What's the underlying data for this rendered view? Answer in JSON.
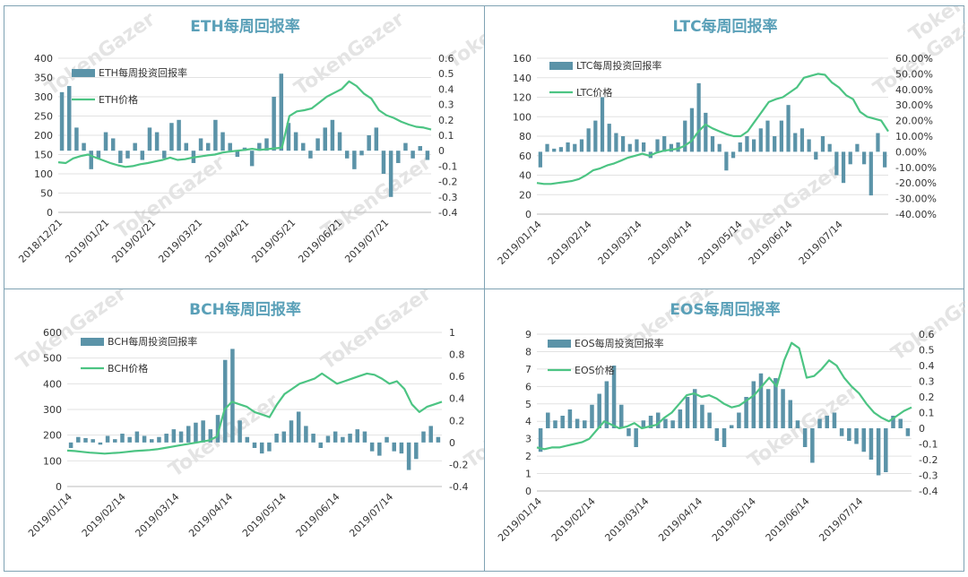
{
  "watermark": "TokenGazer",
  "colors": {
    "bar": "#5b93a8",
    "line": "#4cc483",
    "title": "#5aa0b8"
  },
  "chart_data": [
    {
      "type": "bar+line",
      "title": "ETH每周回报率",
      "bar_series": "ETH每周投资回报率",
      "line_series": "ETH价格",
      "y_left": {
        "min": 0,
        "max": 400,
        "ticks": [
          "0",
          "50",
          "100",
          "150",
          "200",
          "250",
          "300",
          "350",
          "400"
        ]
      },
      "y_right": {
        "min": -0.4,
        "max": 0.6,
        "ticks": [
          "0.6",
          "0.5",
          "0.4",
          "0.3",
          "0.2",
          "0.1",
          "0",
          "-0.1",
          "-0.2",
          "-0.3",
          "-0.4"
        ]
      },
      "x_ticks": [
        "2018/12/21",
        "2019/01/21",
        "2019/02/21",
        "2019/03/21",
        "2019/04/21",
        "2019/05/21",
        "2019/06/21",
        "2019/07/21"
      ],
      "line_values": [
        130,
        128,
        140,
        146,
        150,
        142,
        135,
        128,
        122,
        118,
        120,
        125,
        128,
        132,
        136,
        142,
        136,
        138,
        142,
        145,
        148,
        150,
        155,
        158,
        160,
        162,
        165,
        162,
        164,
        166,
        168,
        250,
        262,
        265,
        270,
        285,
        300,
        310,
        320,
        340,
        328,
        308,
        295,
        265,
        252,
        245,
        235,
        228,
        222,
        220,
        215
      ],
      "bar_values": [
        0.38,
        0.42,
        0.15,
        0.05,
        -0.12,
        -0.05,
        0.12,
        0.08,
        -0.08,
        -0.05,
        0.05,
        -0.06,
        0.15,
        0.12,
        -0.05,
        0.18,
        0.2,
        0.05,
        -0.08,
        0.08,
        0.05,
        0.2,
        0.12,
        0.05,
        -0.04,
        0.02,
        -0.1,
        0.05,
        0.08,
        0.35,
        0.5,
        0.18,
        0.12,
        0.05,
        -0.05,
        0.08,
        0.15,
        0.2,
        0.12,
        -0.05,
        -0.12,
        -0.03,
        0.1,
        0.15,
        -0.15,
        -0.3,
        -0.08,
        0.05,
        -0.05,
        0.03,
        -0.06
      ]
    },
    {
      "type": "bar+line",
      "title": "LTC每周回报率",
      "bar_series": "LTC每周投资回报率",
      "line_series": "LTC价格",
      "y_left": {
        "min": 0,
        "max": 160,
        "ticks": [
          "0",
          "20",
          "40",
          "60",
          "80",
          "100",
          "120",
          "140",
          "160"
        ]
      },
      "y_right": {
        "min": -0.4,
        "max": 0.6,
        "ticks": [
          "60.00%",
          "50.00%",
          "40.00%",
          "30.00%",
          "20.00%",
          "10.00%",
          "0.00%",
          "-10.00%",
          "-20.00%",
          "-30.00%",
          "-40.00%"
        ]
      },
      "x_ticks": [
        "2019/01/14",
        "2019/02/14",
        "2019/03/14",
        "2019/04/14",
        "2019/05/14",
        "2019/06/14",
        "2019/07/14"
      ],
      "line_values": [
        32,
        31,
        31,
        32,
        33,
        34,
        36,
        40,
        45,
        47,
        50,
        52,
        55,
        58,
        60,
        62,
        60,
        63,
        65,
        66,
        67,
        70,
        75,
        85,
        92,
        88,
        85,
        82,
        80,
        80,
        85,
        95,
        105,
        115,
        118,
        120,
        125,
        130,
        140,
        142,
        144,
        143,
        135,
        130,
        122,
        118,
        105,
        100,
        98,
        96,
        85
      ],
      "bar_values": [
        -0.1,
        0.05,
        0.02,
        0.03,
        0.06,
        0.05,
        0.08,
        0.15,
        0.2,
        0.35,
        0.18,
        0.12,
        0.1,
        0.05,
        0.08,
        0.06,
        -0.04,
        0.08,
        0.1,
        0.05,
        0.06,
        0.2,
        0.28,
        0.44,
        0.25,
        0.1,
        0.05,
        -0.12,
        -0.04,
        0.06,
        0.1,
        0.08,
        0.15,
        0.2,
        0.1,
        0.2,
        0.3,
        0.12,
        0.15,
        0.08,
        -0.05,
        0.1,
        0.05,
        -0.15,
        -0.2,
        -0.08,
        0.05,
        -0.08,
        -0.28,
        0.12,
        -0.1
      ]
    },
    {
      "type": "bar+line",
      "title": "BCH每周回报率",
      "bar_series": "BCH每周投资回报率",
      "line_series": "BCH价格",
      "y_left": {
        "min": 0,
        "max": 600,
        "ticks": [
          "0",
          "100",
          "200",
          "300",
          "400",
          "500",
          "600"
        ]
      },
      "y_right": {
        "min": -0.4,
        "max": 1,
        "ticks": [
          "1",
          "0.8",
          "0.6",
          "0.4",
          "0.2",
          "0",
          "-0.2",
          "-0.4"
        ]
      },
      "x_ticks": [
        "2019/01/14",
        "2019/02/14",
        "2019/03/14",
        "2019/04/14",
        "2019/05/14",
        "2019/06/14",
        "2019/07/14"
      ],
      "line_values": [
        140,
        138,
        135,
        132,
        130,
        128,
        130,
        132,
        135,
        138,
        140,
        142,
        145,
        150,
        155,
        160,
        165,
        170,
        175,
        180,
        195,
        300,
        330,
        320,
        310,
        290,
        280,
        270,
        320,
        360,
        380,
        400,
        410,
        420,
        440,
        420,
        400,
        410,
        420,
        430,
        440,
        435,
        420,
        400,
        410,
        380,
        320,
        290,
        310,
        320,
        330
      ],
      "bar_values": [
        -0.05,
        0.05,
        0.04,
        0.03,
        -0.02,
        0.06,
        0.03,
        0.08,
        0.05,
        0.1,
        0.06,
        0.03,
        0.05,
        0.08,
        0.12,
        0.1,
        0.15,
        0.18,
        0.2,
        0.12,
        0.25,
        0.75,
        0.85,
        0.2,
        0.05,
        -0.05,
        -0.1,
        -0.08,
        0.08,
        0.1,
        0.2,
        0.28,
        0.15,
        0.08,
        -0.05,
        0.06,
        0.1,
        0.05,
        0.08,
        0.12,
        0.1,
        -0.08,
        -0.12,
        0.05,
        -0.08,
        -0.1,
        -0.25,
        -0.15,
        0.1,
        0.15,
        0.05
      ]
    },
    {
      "type": "bar+line",
      "title": "EOS每周回报率",
      "bar_series": "EOS每周投资回报率",
      "line_series": "EOS价格",
      "y_left": {
        "min": 0,
        "max": 9,
        "ticks": [
          "0",
          "1",
          "2",
          "3",
          "4",
          "5",
          "6",
          "7",
          "8",
          "9"
        ]
      },
      "y_right": {
        "min": -0.4,
        "max": 0.6,
        "ticks": [
          "0.6",
          "0.5",
          "0.4",
          "0.3",
          "0.2",
          "0.1",
          "0",
          "-0.1",
          "-0.2",
          "-0.3",
          "-0.4"
        ]
      },
      "x_ticks": [
        "2019/01/14",
        "2019/02/14",
        "2019/03/14",
        "2019/04/14",
        "2019/05/14",
        "2019/06/14",
        "2019/07/14"
      ],
      "line_values": [
        2.5,
        2.4,
        2.5,
        2.5,
        2.6,
        2.7,
        2.8,
        3.0,
        3.5,
        4.0,
        3.8,
        3.6,
        3.7,
        3.9,
        3.6,
        3.7,
        3.8,
        4.2,
        4.5,
        5.0,
        5.5,
        5.6,
        5.4,
        5.5,
        5.3,
        5.0,
        4.8,
        4.9,
        5.2,
        5.5,
        6.0,
        6.5,
        6.0,
        7.5,
        8.5,
        8.2,
        6.5,
        6.6,
        7.0,
        7.5,
        7.2,
        6.5,
        6.0,
        5.6,
        5.0,
        4.5,
        4.2,
        4.0,
        4.3,
        4.6,
        4.8
      ],
      "bar_values": [
        -0.15,
        0.1,
        0.05,
        0.08,
        0.12,
        0.06,
        0.05,
        0.15,
        0.22,
        0.3,
        0.4,
        0.15,
        -0.05,
        -0.12,
        0.05,
        0.08,
        0.1,
        0.06,
        0.05,
        0.12,
        0.2,
        0.25,
        0.15,
        0.1,
        -0.08,
        -0.12,
        0.02,
        0.1,
        0.2,
        0.3,
        0.35,
        0.25,
        0.32,
        0.25,
        0.18,
        0.05,
        -0.12,
        -0.22,
        0.06,
        0.08,
        0.1,
        -0.05,
        -0.08,
        -0.1,
        -0.15,
        -0.2,
        -0.3,
        -0.28,
        0.08,
        0.06,
        -0.05
      ]
    }
  ]
}
